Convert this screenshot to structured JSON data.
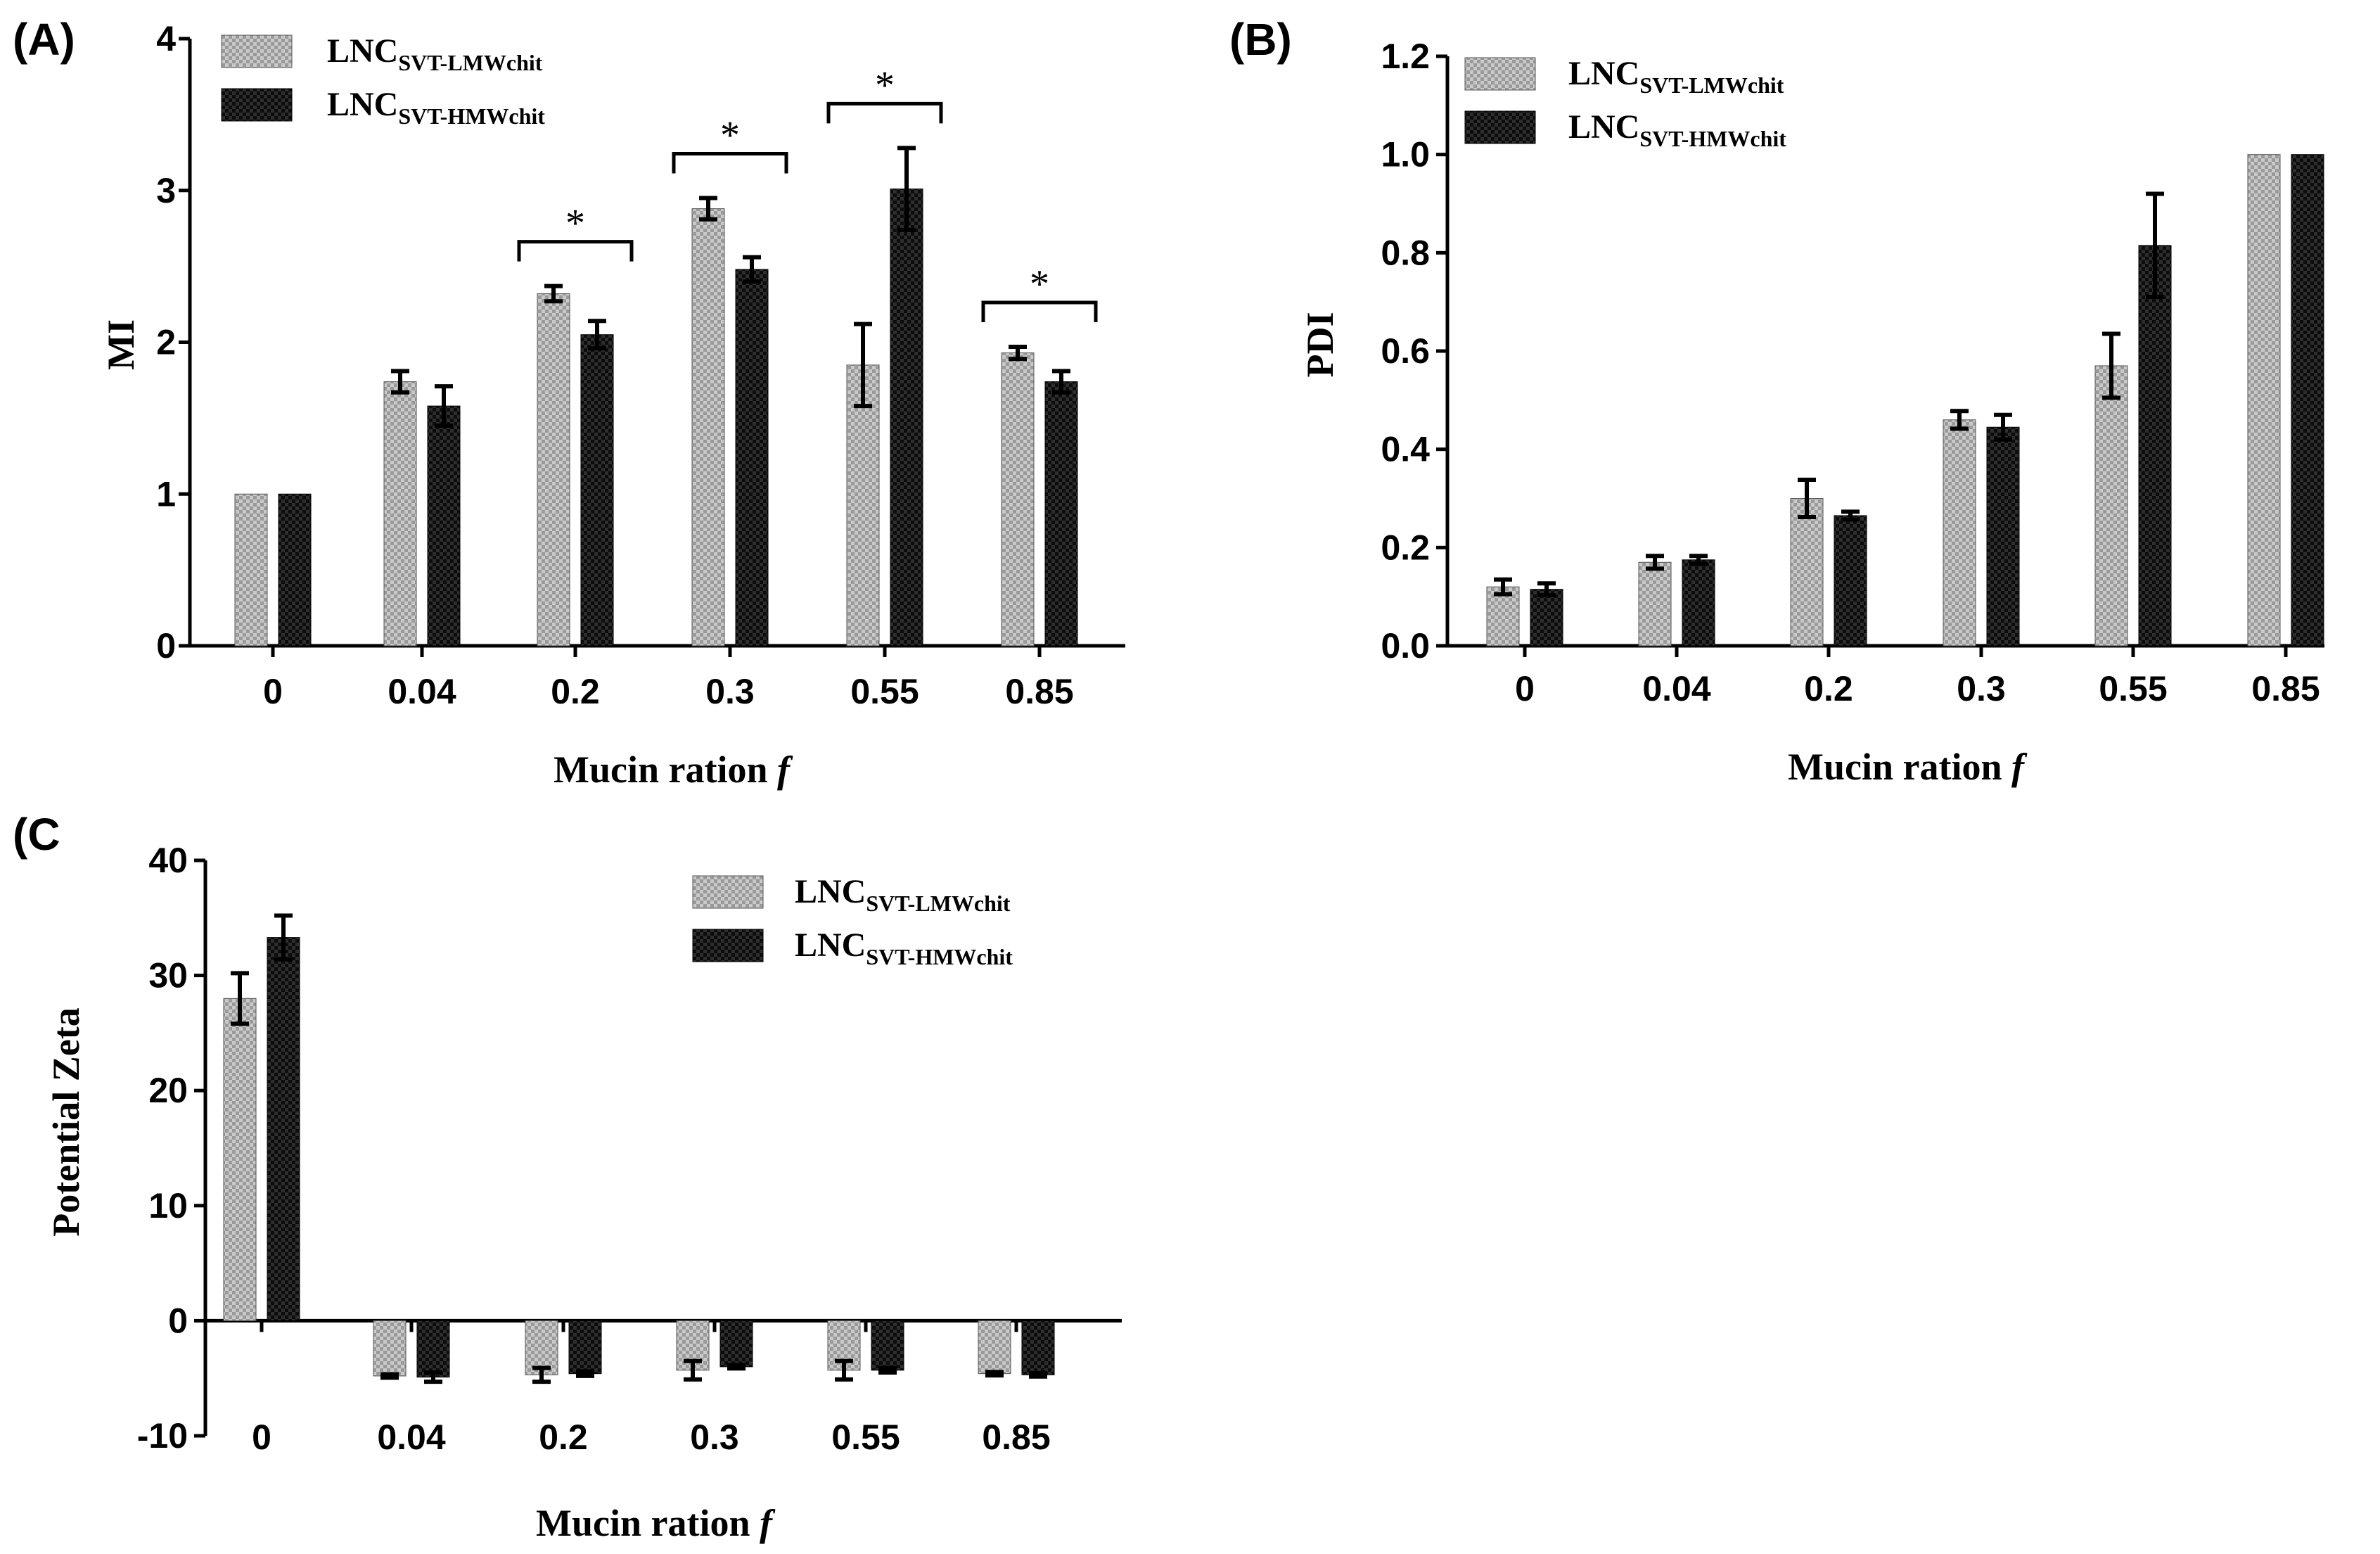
{
  "chart_data": [
    {
      "panel": "(A)",
      "type": "bar",
      "xlabel": "Mucin ration",
      "xlabel_italic": "f",
      "ylabel": "MI",
      "ylim": [
        0,
        4
      ],
      "yticks": [
        "0",
        "1",
        "2",
        "3",
        "4"
      ],
      "categories": [
        "0",
        "0.04",
        "0.2",
        "0.3",
        "0.55",
        "0.85"
      ],
      "legend_position": "top-left",
      "series": [
        {
          "name": "LNC",
          "name_sub": "SVT-LMWchit",
          "style": "light-gray-hatched",
          "values": [
            1.0,
            1.74,
            2.32,
            2.88,
            1.85,
            1.93
          ],
          "errors": [
            0,
            0.07,
            0.05,
            0.07,
            0.27,
            0.04
          ]
        },
        {
          "name": "LNC",
          "name_sub": "SVT-HMWchit",
          "style": "dark-gray-hatched",
          "values": [
            1.0,
            1.58,
            2.05,
            2.48,
            3.01,
            1.74
          ],
          "errors": [
            0,
            0.13,
            0.09,
            0.08,
            0.27,
            0.07
          ]
        }
      ],
      "significance": [
        {
          "category_index": 2,
          "label": "*"
        },
        {
          "category_index": 3,
          "label": "*"
        },
        {
          "category_index": 4,
          "label": "*"
        },
        {
          "category_index": 5,
          "label": "*"
        }
      ]
    },
    {
      "panel": "(B)",
      "type": "bar",
      "xlabel": "Mucin ration",
      "xlabel_italic": "f",
      "ylabel": "PDI",
      "ylim": [
        0,
        1.2
      ],
      "yticks": [
        "0.0",
        "0.2",
        "0.4",
        "0.6",
        "0.8",
        "1.0",
        "1.2"
      ],
      "categories": [
        "0",
        "0.04",
        "0.2",
        "0.3",
        "0.55",
        "0.85"
      ],
      "legend_position": "top-left",
      "series": [
        {
          "name": "LNC",
          "name_sub": "SVT-LMWchit",
          "style": "light-gray-hatched",
          "values": [
            0.12,
            0.17,
            0.3,
            0.46,
            0.57,
            1.0
          ],
          "errors": [
            0.015,
            0.013,
            0.038,
            0.018,
            0.065,
            0
          ]
        },
        {
          "name": "LNC",
          "name_sub": "SVT-HMWchit",
          "style": "dark-gray-hatched",
          "values": [
            0.115,
            0.175,
            0.265,
            0.445,
            0.815,
            1.0
          ],
          "errors": [
            0.012,
            0.008,
            0.008,
            0.025,
            0.105,
            0
          ]
        }
      ],
      "significance": []
    },
    {
      "panel": "(C",
      "type": "bar",
      "xlabel": "Mucin ration",
      "xlabel_italic": "f",
      "ylabel": "Potential Zeta",
      "ylim": [
        -10,
        40
      ],
      "yticks": [
        "-10",
        "0",
        "10",
        "20",
        "30",
        "40"
      ],
      "categories": [
        "0",
        "0.04",
        "0.2",
        "0.3",
        "0.55",
        "0.85"
      ],
      "legend_position": "top-right",
      "series": [
        {
          "name": "LNC",
          "name_sub": "SVT-LMWchit",
          "style": "light-gray-hatched",
          "values": [
            28.0,
            -4.8,
            -4.7,
            -4.3,
            -4.3,
            -4.6
          ],
          "errors": [
            2.2,
            0.15,
            0.6,
            0.8,
            0.8,
            0.15
          ]
        },
        {
          "name": "LNC",
          "name_sub": "SVT-HMWchit",
          "style": "dark-gray-hatched",
          "values": [
            33.3,
            -4.9,
            -4.6,
            -4.0,
            -4.3,
            -4.7
          ],
          "errors": [
            1.9,
            0.4,
            0.2,
            0.15,
            0.2,
            0.15
          ]
        }
      ],
      "significance": []
    }
  ]
}
